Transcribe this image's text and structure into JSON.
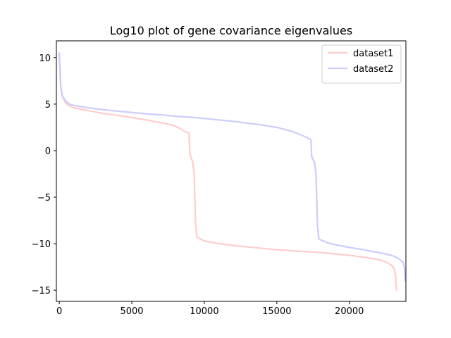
{
  "chart_data": {
    "type": "line",
    "title": "Log10 plot of gene covariance eigenvalues",
    "xlabel": "",
    "ylabel": "",
    "xlim": [
      -200,
      23900
    ],
    "ylim": [
      -16.2,
      11.8
    ],
    "xticks": [
      0,
      5000,
      10000,
      15000,
      20000
    ],
    "xtick_labels": [
      "0",
      "5000",
      "10000",
      "15000",
      "20000"
    ],
    "yticks": [
      10,
      5,
      0,
      -5,
      -10,
      -15
    ],
    "ytick_labels": [
      "10",
      "5",
      "0",
      "−5",
      "−10",
      "−15"
    ],
    "grid": false,
    "legend_position": "top-right",
    "series": [
      {
        "name": "dataset1",
        "color": "#ffcccc",
        "x": [
          0,
          50,
          100,
          200,
          400,
          700,
          1000,
          2000,
          3000,
          4000,
          5000,
          6000,
          7000,
          7800,
          8300,
          8700,
          8950,
          9000,
          9050,
          9200,
          9300,
          9350,
          9400,
          9500,
          10000,
          11000,
          12000,
          13000,
          14000,
          15000,
          16000,
          17000,
          18000,
          19000,
          20000,
          21000,
          22000,
          22500,
          22900,
          23100,
          23200,
          23250
        ],
        "y": [
          10.3,
          8.5,
          6.8,
          5.9,
          5.2,
          4.8,
          4.6,
          4.3,
          4.0,
          3.8,
          3.55,
          3.3,
          3.0,
          2.75,
          2.4,
          2.0,
          1.9,
          -0.3,
          -0.6,
          -1.2,
          -2.5,
          -5.0,
          -8.0,
          -9.3,
          -9.7,
          -10.0,
          -10.2,
          -10.35,
          -10.5,
          -10.65,
          -10.75,
          -10.85,
          -10.95,
          -11.1,
          -11.25,
          -11.45,
          -11.7,
          -11.95,
          -12.3,
          -12.7,
          -13.5,
          -15.0
        ]
      },
      {
        "name": "dataset2",
        "color": "#ccccff",
        "x": [
          0,
          50,
          100,
          200,
          400,
          700,
          1000,
          2000,
          3000,
          4000,
          5000,
          6000,
          7000,
          8000,
          9000,
          10000,
          11000,
          12000,
          13000,
          14000,
          15000,
          16000,
          16800,
          17200,
          17350,
          17400,
          17450,
          17600,
          17700,
          17750,
          17800,
          17900,
          18500,
          19000,
          20000,
          21000,
          22000,
          22500,
          23000,
          23400,
          23700,
          23800,
          23850
        ],
        "y": [
          10.5,
          8.8,
          7.0,
          6.0,
          5.4,
          5.0,
          4.85,
          4.6,
          4.4,
          4.25,
          4.1,
          3.95,
          3.85,
          3.7,
          3.6,
          3.45,
          3.3,
          3.15,
          2.95,
          2.75,
          2.5,
          2.1,
          1.6,
          1.3,
          1.2,
          -0.6,
          -0.8,
          -1.3,
          -2.5,
          -5.0,
          -8.0,
          -9.5,
          -9.9,
          -10.1,
          -10.4,
          -10.65,
          -10.95,
          -11.1,
          -11.3,
          -11.6,
          -12.0,
          -12.6,
          -14.0
        ]
      }
    ]
  }
}
